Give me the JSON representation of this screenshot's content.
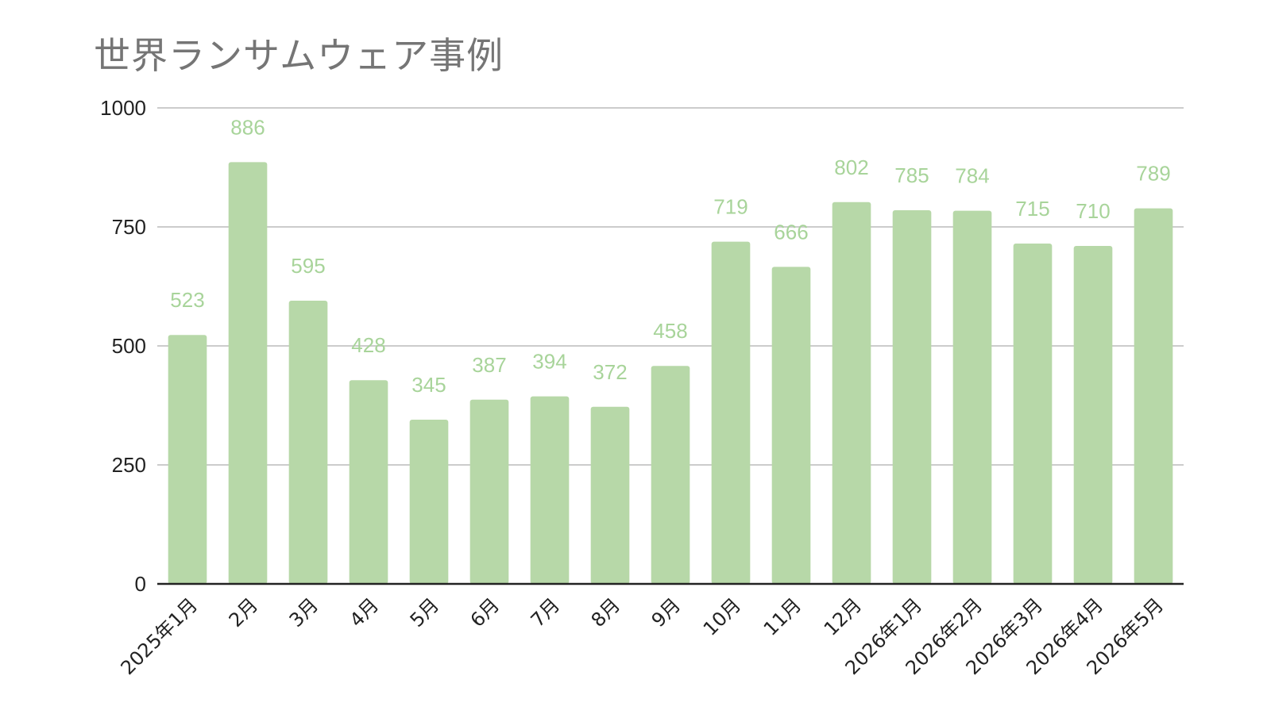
{
  "chart_data": {
    "type": "bar",
    "title": "世界ランサムウェア事例",
    "xlabel": "",
    "ylabel": "",
    "ylim": [
      0,
      1000
    ],
    "yticks": [
      0,
      250,
      500,
      750,
      1000
    ],
    "grid": true,
    "legend": "none",
    "categories": [
      "2025年1月",
      "2月",
      "3月",
      "4月",
      "5月",
      "6月",
      "7月",
      "8月",
      "9月",
      "10月",
      "11月",
      "12月",
      "2026年1月",
      "2026年2月",
      "2026年3月",
      "2026年4月",
      "2026年5月"
    ],
    "values": [
      523,
      886,
      595,
      428,
      345,
      387,
      394,
      372,
      458,
      719,
      666,
      802,
      785,
      784,
      715,
      710,
      789
    ],
    "colors": {
      "bar": "#b7d8a8",
      "data_label": "#a8d49a",
      "grid": "#cccccc",
      "axis": "#222222",
      "title": "#757575"
    }
  }
}
